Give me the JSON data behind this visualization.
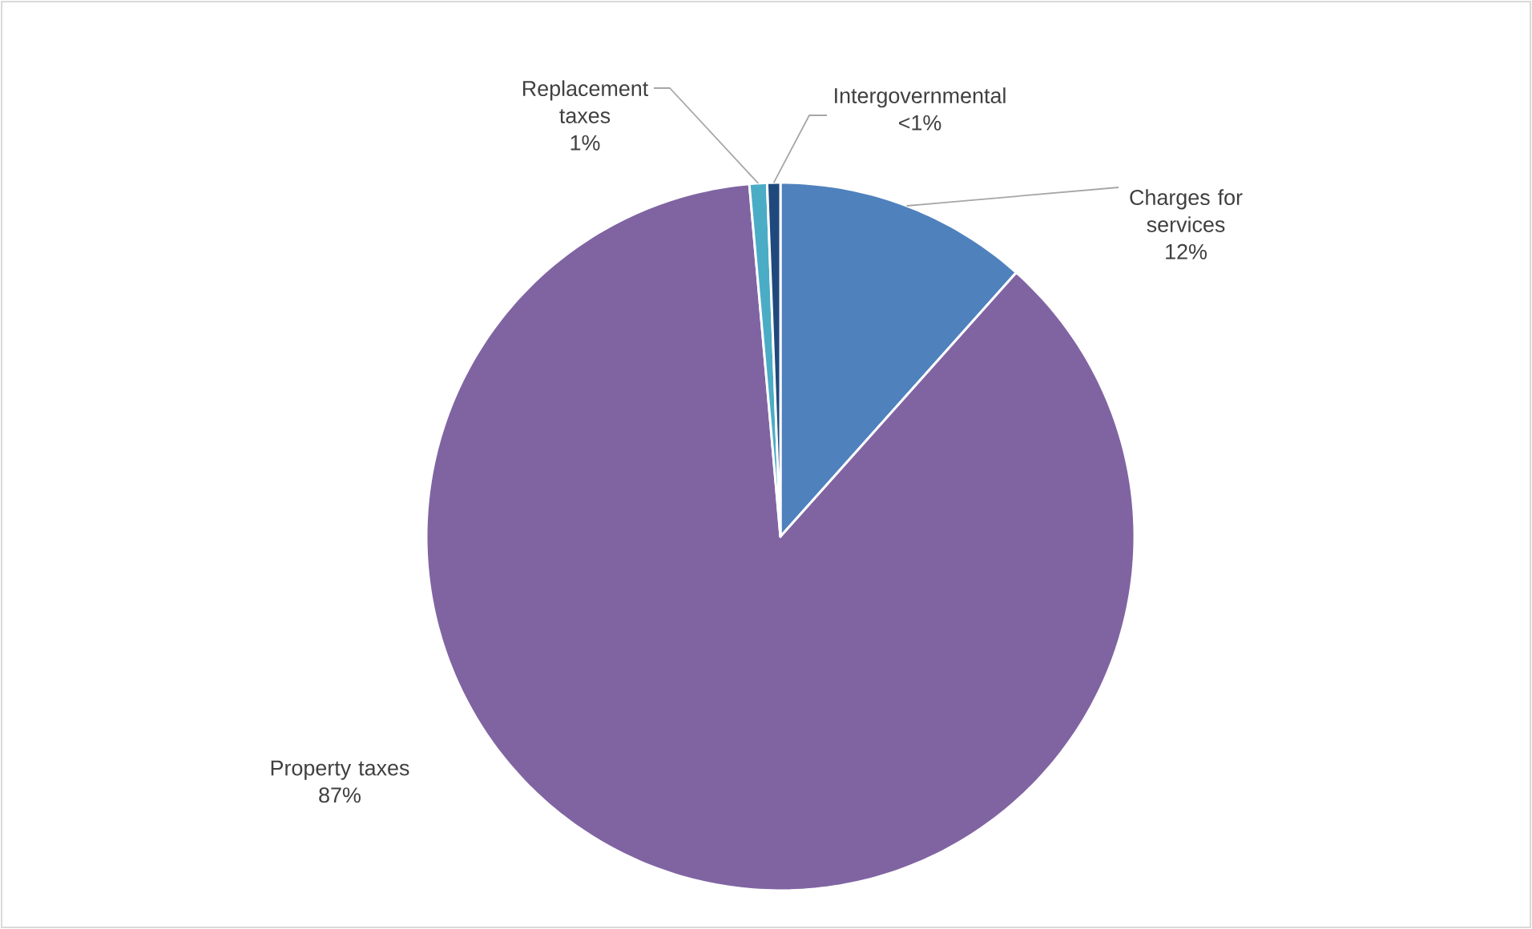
{
  "chart_data": {
    "type": "pie",
    "categories": [
      "Charges for services",
      "Property taxes",
      "Replacement taxes",
      "Intergovernmental"
    ],
    "values": [
      11.6,
      87.0,
      0.8,
      0.6
    ],
    "value_labels": [
      "12%",
      "87%",
      "1%",
      "<1%"
    ],
    "colors": [
      "#4f81bd",
      "#8064a2",
      "#4bacc6",
      "#1f497d"
    ]
  }
}
